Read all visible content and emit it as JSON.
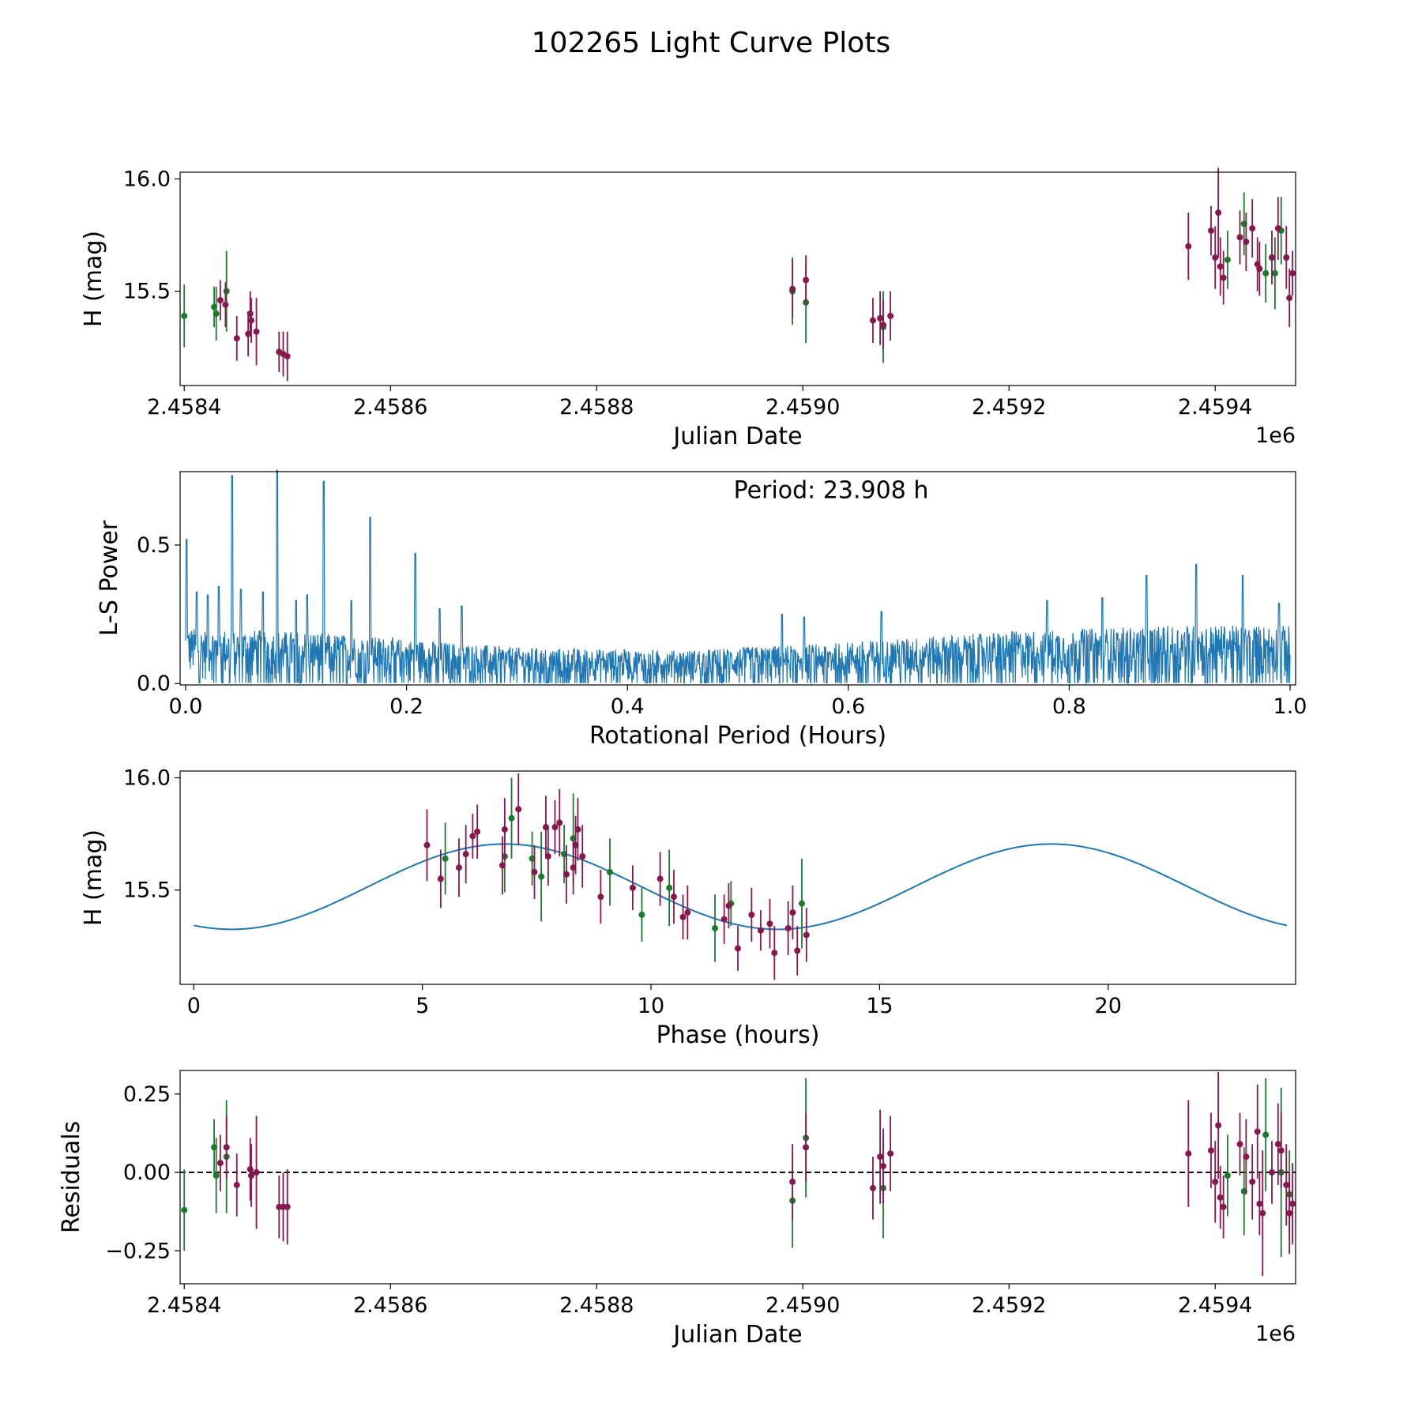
{
  "figure_title": "102265 Light Curve Plots",
  "colors": {
    "magenta": "#86184e",
    "green": "#1a7a2e",
    "line": "#1f77b4",
    "black": "#000000"
  },
  "chart_data": [
    {
      "id": "lightcurve",
      "type": "scatter",
      "title": "",
      "xlabel": "Julian Date",
      "ylabel": "H (mag)",
      "offset_text": "1e6",
      "xlim": [
        2458396,
        2459478
      ],
      "ylim": [
        15.08,
        16.03
      ],
      "xticks": [
        2458400,
        2458600,
        2458800,
        2459000,
        2459200,
        2459400
      ],
      "xtick_labels": [
        "2.4584",
        "2.4586",
        "2.4588",
        "2.4590",
        "2.4592",
        "2.4594"
      ],
      "yticks": [
        15.5,
        16.0
      ],
      "ytick_labels": [
        "15.5",
        "16.0"
      ],
      "series": [
        {
          "name": "green",
          "color": "green",
          "points": [
            [
              2458400,
              15.39,
              0.14
            ],
            [
              2458429,
              15.43,
              0.09
            ],
            [
              2458431,
              15.4,
              0.12
            ],
            [
              2458441,
              15.5,
              0.18
            ],
            [
              2458990,
              15.5,
              0.15
            ],
            [
              2459003,
              15.45,
              0.18
            ],
            [
              2459078,
              15.34,
              0.16
            ],
            [
              2459412,
              15.64,
              0.13
            ],
            [
              2459428,
              15.8,
              0.14
            ],
            [
              2459449,
              15.58,
              0.13
            ],
            [
              2459458,
              15.58,
              0.16
            ],
            [
              2459464,
              15.77,
              0.15
            ]
          ]
        },
        {
          "name": "magenta",
          "color": "magenta",
          "points": [
            [
              2458435,
              15.46,
              0.09
            ],
            [
              2458440,
              15.44,
              0.1
            ],
            [
              2458451,
              15.29,
              0.1
            ],
            [
              2458462,
              15.31,
              0.1
            ],
            [
              2458464,
              15.4,
              0.1
            ],
            [
              2458465,
              15.37,
              0.1
            ],
            [
              2458470,
              15.32,
              0.15
            ],
            [
              2458492,
              15.23,
              0.09
            ],
            [
              2458496,
              15.22,
              0.1
            ],
            [
              2458500,
              15.21,
              0.11
            ],
            [
              2458990,
              15.51,
              0.13
            ],
            [
              2459003,
              15.55,
              0.11
            ],
            [
              2459068,
              15.37,
              0.1
            ],
            [
              2459075,
              15.38,
              0.12
            ],
            [
              2459078,
              15.35,
              0.11
            ],
            [
              2459085,
              15.39,
              0.11
            ],
            [
              2459374,
              15.7,
              0.15
            ],
            [
              2459396,
              15.77,
              0.11
            ],
            [
              2459400,
              15.65,
              0.14
            ],
            [
              2459403,
              15.85,
              0.2
            ],
            [
              2459405,
              15.61,
              0.13
            ],
            [
              2459408,
              15.56,
              0.12
            ],
            [
              2459424,
              15.74,
              0.12
            ],
            [
              2459430,
              15.72,
              0.13
            ],
            [
              2459436,
              15.78,
              0.13
            ],
            [
              2459441,
              15.62,
              0.12
            ],
            [
              2459443,
              15.6,
              0.12
            ],
            [
              2459455,
              15.65,
              0.12
            ],
            [
              2459461,
              15.78,
              0.14
            ],
            [
              2459469,
              15.65,
              0.14
            ],
            [
              2459472,
              15.47,
              0.13
            ],
            [
              2459475,
              15.58,
              0.1
            ]
          ]
        }
      ]
    },
    {
      "id": "periodogram",
      "type": "line",
      "title": "",
      "xlabel": "Rotational Period (Hours)",
      "ylabel": "L-S Power",
      "annotation": "Period: 23.908 h",
      "xlim": [
        -0.005,
        1.005
      ],
      "ylim": [
        -0.005,
        0.765
      ],
      "xticks": [
        0.0,
        0.2,
        0.4,
        0.6,
        0.8,
        1.0
      ],
      "xtick_labels": [
        "0.0",
        "0.2",
        "0.4",
        "0.6",
        "0.8",
        "1.0"
      ],
      "yticks": [
        0.0,
        0.5
      ],
      "ytick_labels": [
        "0.0",
        "0.5"
      ],
      "baseline_envelope": [
        [
          0.0,
          0.2
        ],
        [
          0.1,
          0.19
        ],
        [
          0.3,
          0.13
        ],
        [
          0.45,
          0.12
        ],
        [
          0.6,
          0.15
        ],
        [
          0.75,
          0.19
        ],
        [
          0.9,
          0.21
        ],
        [
          1.0,
          0.21
        ]
      ],
      "peaks": [
        [
          0.001,
          0.52
        ],
        [
          0.042,
          0.75
        ],
        [
          0.083,
          0.77
        ],
        [
          0.125,
          0.73
        ],
        [
          0.167,
          0.6
        ],
        [
          0.208,
          0.47
        ],
        [
          0.01,
          0.33
        ],
        [
          0.02,
          0.32
        ],
        [
          0.03,
          0.35
        ],
        [
          0.05,
          0.34
        ],
        [
          0.07,
          0.33
        ],
        [
          0.1,
          0.3
        ],
        [
          0.11,
          0.32
        ],
        [
          0.15,
          0.3
        ],
        [
          0.23,
          0.27
        ],
        [
          0.25,
          0.28
        ],
        [
          0.54,
          0.25
        ],
        [
          0.56,
          0.24
        ],
        [
          0.63,
          0.26
        ],
        [
          0.78,
          0.3
        ],
        [
          0.83,
          0.31
        ],
        [
          0.87,
          0.39
        ],
        [
          0.915,
          0.43
        ],
        [
          0.957,
          0.39
        ],
        [
          0.99,
          0.29
        ]
      ]
    },
    {
      "id": "phased",
      "type": "scatter",
      "title": "",
      "xlabel": "Phase (hours)",
      "ylabel": "H (mag)",
      "xlim": [
        -0.3,
        24.1
      ],
      "ylim": [
        15.08,
        16.03
      ],
      "xticks": [
        0,
        5,
        10,
        15,
        20
      ],
      "xtick_labels": [
        "0",
        "5",
        "10",
        "15",
        "20"
      ],
      "yticks": [
        15.5,
        16.0
      ],
      "ytick_labels": [
        "15.5",
        "16.0"
      ],
      "model": {
        "period_h": 23.908,
        "mean": 15.515,
        "amplitude": 0.19,
        "peak_phase": 6.8
      },
      "series": [
        {
          "name": "green",
          "color": "green",
          "points": [
            [
              5.5,
              15.64,
              0.16
            ],
            [
              6.8,
              15.65,
              0.16
            ],
            [
              6.95,
              15.82,
              0.18
            ],
            [
              7.4,
              15.64,
              0.12
            ],
            [
              7.6,
              15.56,
              0.2
            ],
            [
              8.1,
              15.66,
              0.13
            ],
            [
              8.3,
              15.73,
              0.2
            ],
            [
              9.1,
              15.58,
              0.15
            ],
            [
              9.8,
              15.39,
              0.12
            ],
            [
              10.4,
              15.51,
              0.17
            ],
            [
              11.4,
              15.33,
              0.15
            ],
            [
              11.75,
              15.44,
              0.1
            ],
            [
              13.3,
              15.44,
              0.2
            ]
          ]
        },
        {
          "name": "magenta",
          "color": "magenta",
          "points": [
            [
              5.1,
              15.7,
              0.16
            ],
            [
              5.4,
              15.55,
              0.13
            ],
            [
              5.8,
              15.6,
              0.13
            ],
            [
              5.95,
              15.66,
              0.13
            ],
            [
              6.1,
              15.74,
              0.1
            ],
            [
              6.2,
              15.76,
              0.12
            ],
            [
              6.75,
              15.61,
              0.13
            ],
            [
              6.8,
              15.77,
              0.14
            ],
            [
              7.1,
              15.86,
              0.16
            ],
            [
              7.45,
              15.58,
              0.12
            ],
            [
              7.7,
              15.78,
              0.14
            ],
            [
              7.75,
              15.65,
              0.13
            ],
            [
              7.9,
              15.78,
              0.12
            ],
            [
              8.0,
              15.8,
              0.15
            ],
            [
              8.15,
              15.57,
              0.13
            ],
            [
              8.3,
              15.6,
              0.12
            ],
            [
              8.35,
              15.7,
              0.13
            ],
            [
              8.4,
              15.77,
              0.14
            ],
            [
              8.5,
              15.65,
              0.14
            ],
            [
              8.9,
              15.47,
              0.12
            ],
            [
              9.6,
              15.51,
              0.1
            ],
            [
              10.2,
              15.55,
              0.12
            ],
            [
              10.5,
              15.47,
              0.12
            ],
            [
              10.7,
              15.38,
              0.1
            ],
            [
              10.8,
              15.4,
              0.12
            ],
            [
              11.6,
              15.37,
              0.11
            ],
            [
              11.7,
              15.43,
              0.1
            ],
            [
              11.9,
              15.24,
              0.1
            ],
            [
              12.2,
              15.39,
              0.12
            ],
            [
              12.4,
              15.32,
              0.09
            ],
            [
              12.6,
              15.35,
              0.11
            ],
            [
              12.7,
              15.22,
              0.12
            ],
            [
              13.0,
              15.33,
              0.12
            ],
            [
              13.1,
              15.4,
              0.12
            ],
            [
              13.2,
              15.23,
              0.11
            ],
            [
              13.4,
              15.3,
              0.12
            ]
          ]
        }
      ]
    },
    {
      "id": "residuals",
      "type": "scatter",
      "title": "",
      "xlabel": "Julian Date",
      "ylabel": "Residuals",
      "offset_text": "1e6",
      "reference_line": 0.0,
      "xlim": [
        2458396,
        2459478
      ],
      "ylim": [
        -0.355,
        0.325
      ],
      "xticks": [
        2458400,
        2458600,
        2458800,
        2459000,
        2459200,
        2459400
      ],
      "xtick_labels": [
        "2.4584",
        "2.4586",
        "2.4588",
        "2.4590",
        "2.4592",
        "2.4594"
      ],
      "yticks": [
        -0.25,
        0.0,
        0.25
      ],
      "ytick_labels": [
        "−0.25",
        "0.00",
        "0.25"
      ],
      "series": [
        {
          "name": "green",
          "color": "green",
          "points": [
            [
              2458400,
              -0.12,
              0.13
            ],
            [
              2458429,
              0.08,
              0.09
            ],
            [
              2458431,
              -0.01,
              0.12
            ],
            [
              2458441,
              0.05,
              0.18
            ],
            [
              2458990,
              -0.09,
              0.15
            ],
            [
              2459003,
              0.11,
              0.19
            ],
            [
              2459078,
              -0.05,
              0.16
            ],
            [
              2459412,
              -0.01,
              0.13
            ],
            [
              2459428,
              -0.06,
              0.14
            ],
            [
              2459449,
              0.12,
              0.18
            ],
            [
              2459464,
              0.0,
              0.27
            ],
            [
              2459472,
              -0.07,
              0.14
            ]
          ]
        },
        {
          "name": "magenta",
          "color": "magenta",
          "points": [
            [
              2458435,
              0.03,
              0.09
            ],
            [
              2458441,
              0.08,
              0.1
            ],
            [
              2458451,
              -0.04,
              0.1
            ],
            [
              2458464,
              0.01,
              0.1
            ],
            [
              2458465,
              -0.01,
              0.1
            ],
            [
              2458470,
              0.0,
              0.18
            ],
            [
              2458492,
              -0.11,
              0.1
            ],
            [
              2458496,
              -0.11,
              0.11
            ],
            [
              2458500,
              -0.11,
              0.12
            ],
            [
              2458990,
              -0.03,
              0.12
            ],
            [
              2459003,
              0.08,
              0.11
            ],
            [
              2459068,
              -0.05,
              0.1
            ],
            [
              2459075,
              0.05,
              0.15
            ],
            [
              2459078,
              0.02,
              0.12
            ],
            [
              2459085,
              0.06,
              0.12
            ],
            [
              2459374,
              0.06,
              0.17
            ],
            [
              2459396,
              0.07,
              0.12
            ],
            [
              2459400,
              -0.03,
              0.13
            ],
            [
              2459403,
              0.15,
              0.17
            ],
            [
              2459405,
              -0.08,
              0.1
            ],
            [
              2459408,
              -0.11,
              0.1
            ],
            [
              2459424,
              0.09,
              0.1
            ],
            [
              2459430,
              0.05,
              0.12
            ],
            [
              2459436,
              -0.03,
              0.12
            ],
            [
              2459441,
              0.13,
              0.15
            ],
            [
              2459443,
              -0.1,
              0.1
            ],
            [
              2459446,
              -0.13,
              0.2
            ],
            [
              2459455,
              0.0,
              0.1
            ],
            [
              2459461,
              0.09,
              0.13
            ],
            [
              2459464,
              0.07,
              0.12
            ],
            [
              2459469,
              -0.04,
              0.13
            ],
            [
              2459472,
              -0.13,
              0.13
            ],
            [
              2459475,
              -0.1,
              0.13
            ]
          ]
        }
      ]
    }
  ]
}
